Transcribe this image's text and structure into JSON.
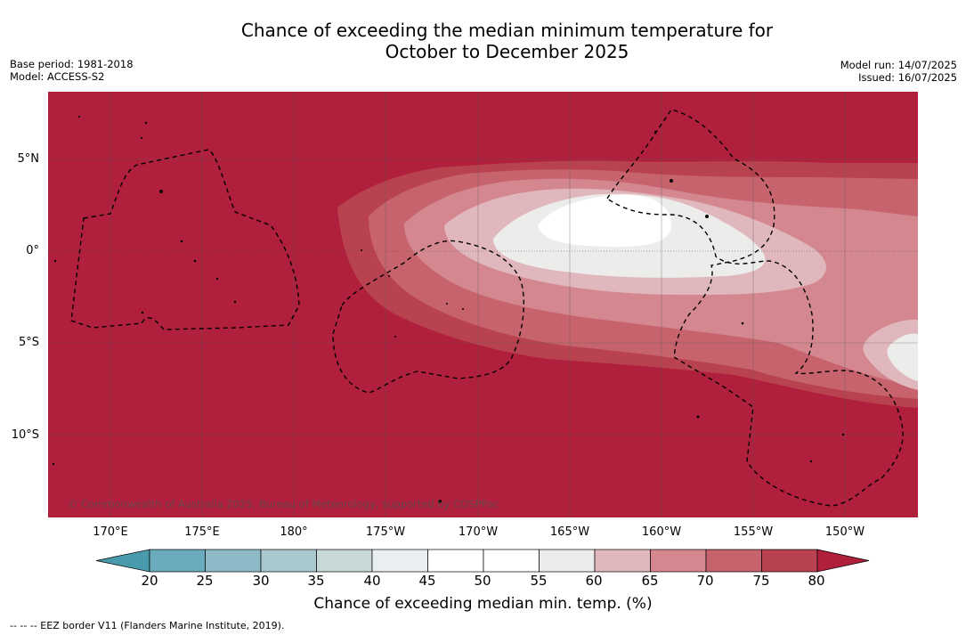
{
  "title_line1": "Chance of exceeding the median minimum temperature for",
  "title_line2": "October to December 2025",
  "base_period": "Base period: 1981-2018",
  "model": "Model: ACCESS-S2",
  "model_run": "Model run: 14/07/2025",
  "issued": "Issued: 16/07/2025",
  "copyright": "© Commonwealth of Australia 2025, Bureau of Meteorology, supported by COSPPac",
  "lat_labels": [
    "5°N",
    "0°",
    "5°S",
    "10°S"
  ],
  "lon_labels": [
    "170°E",
    "175°E",
    "180°",
    "175°W",
    "170°W",
    "165°W",
    "160°W",
    "155°W",
    "150°W"
  ],
  "colorbar": {
    "ticks": [
      "20",
      "25",
      "30",
      "35",
      "40",
      "45",
      "50",
      "55",
      "60",
      "65",
      "70",
      "75",
      "80"
    ],
    "label": "Chance of exceeding median min. temp. (%)",
    "colors": [
      "#4a9aae",
      "#6aacbd",
      "#8cbbc7",
      "#a9c8cd",
      "#c8d8d9",
      "#e9eef1",
      "#ffffff",
      "#ffffff",
      "#ececea",
      "#e0b7bd",
      "#d4878f",
      "#c7636d",
      "#b94250",
      "#b01f3b"
    ]
  },
  "footer": "--  --  -- EEZ border V11 (Flanders Marine Institute, 2019)."
}
